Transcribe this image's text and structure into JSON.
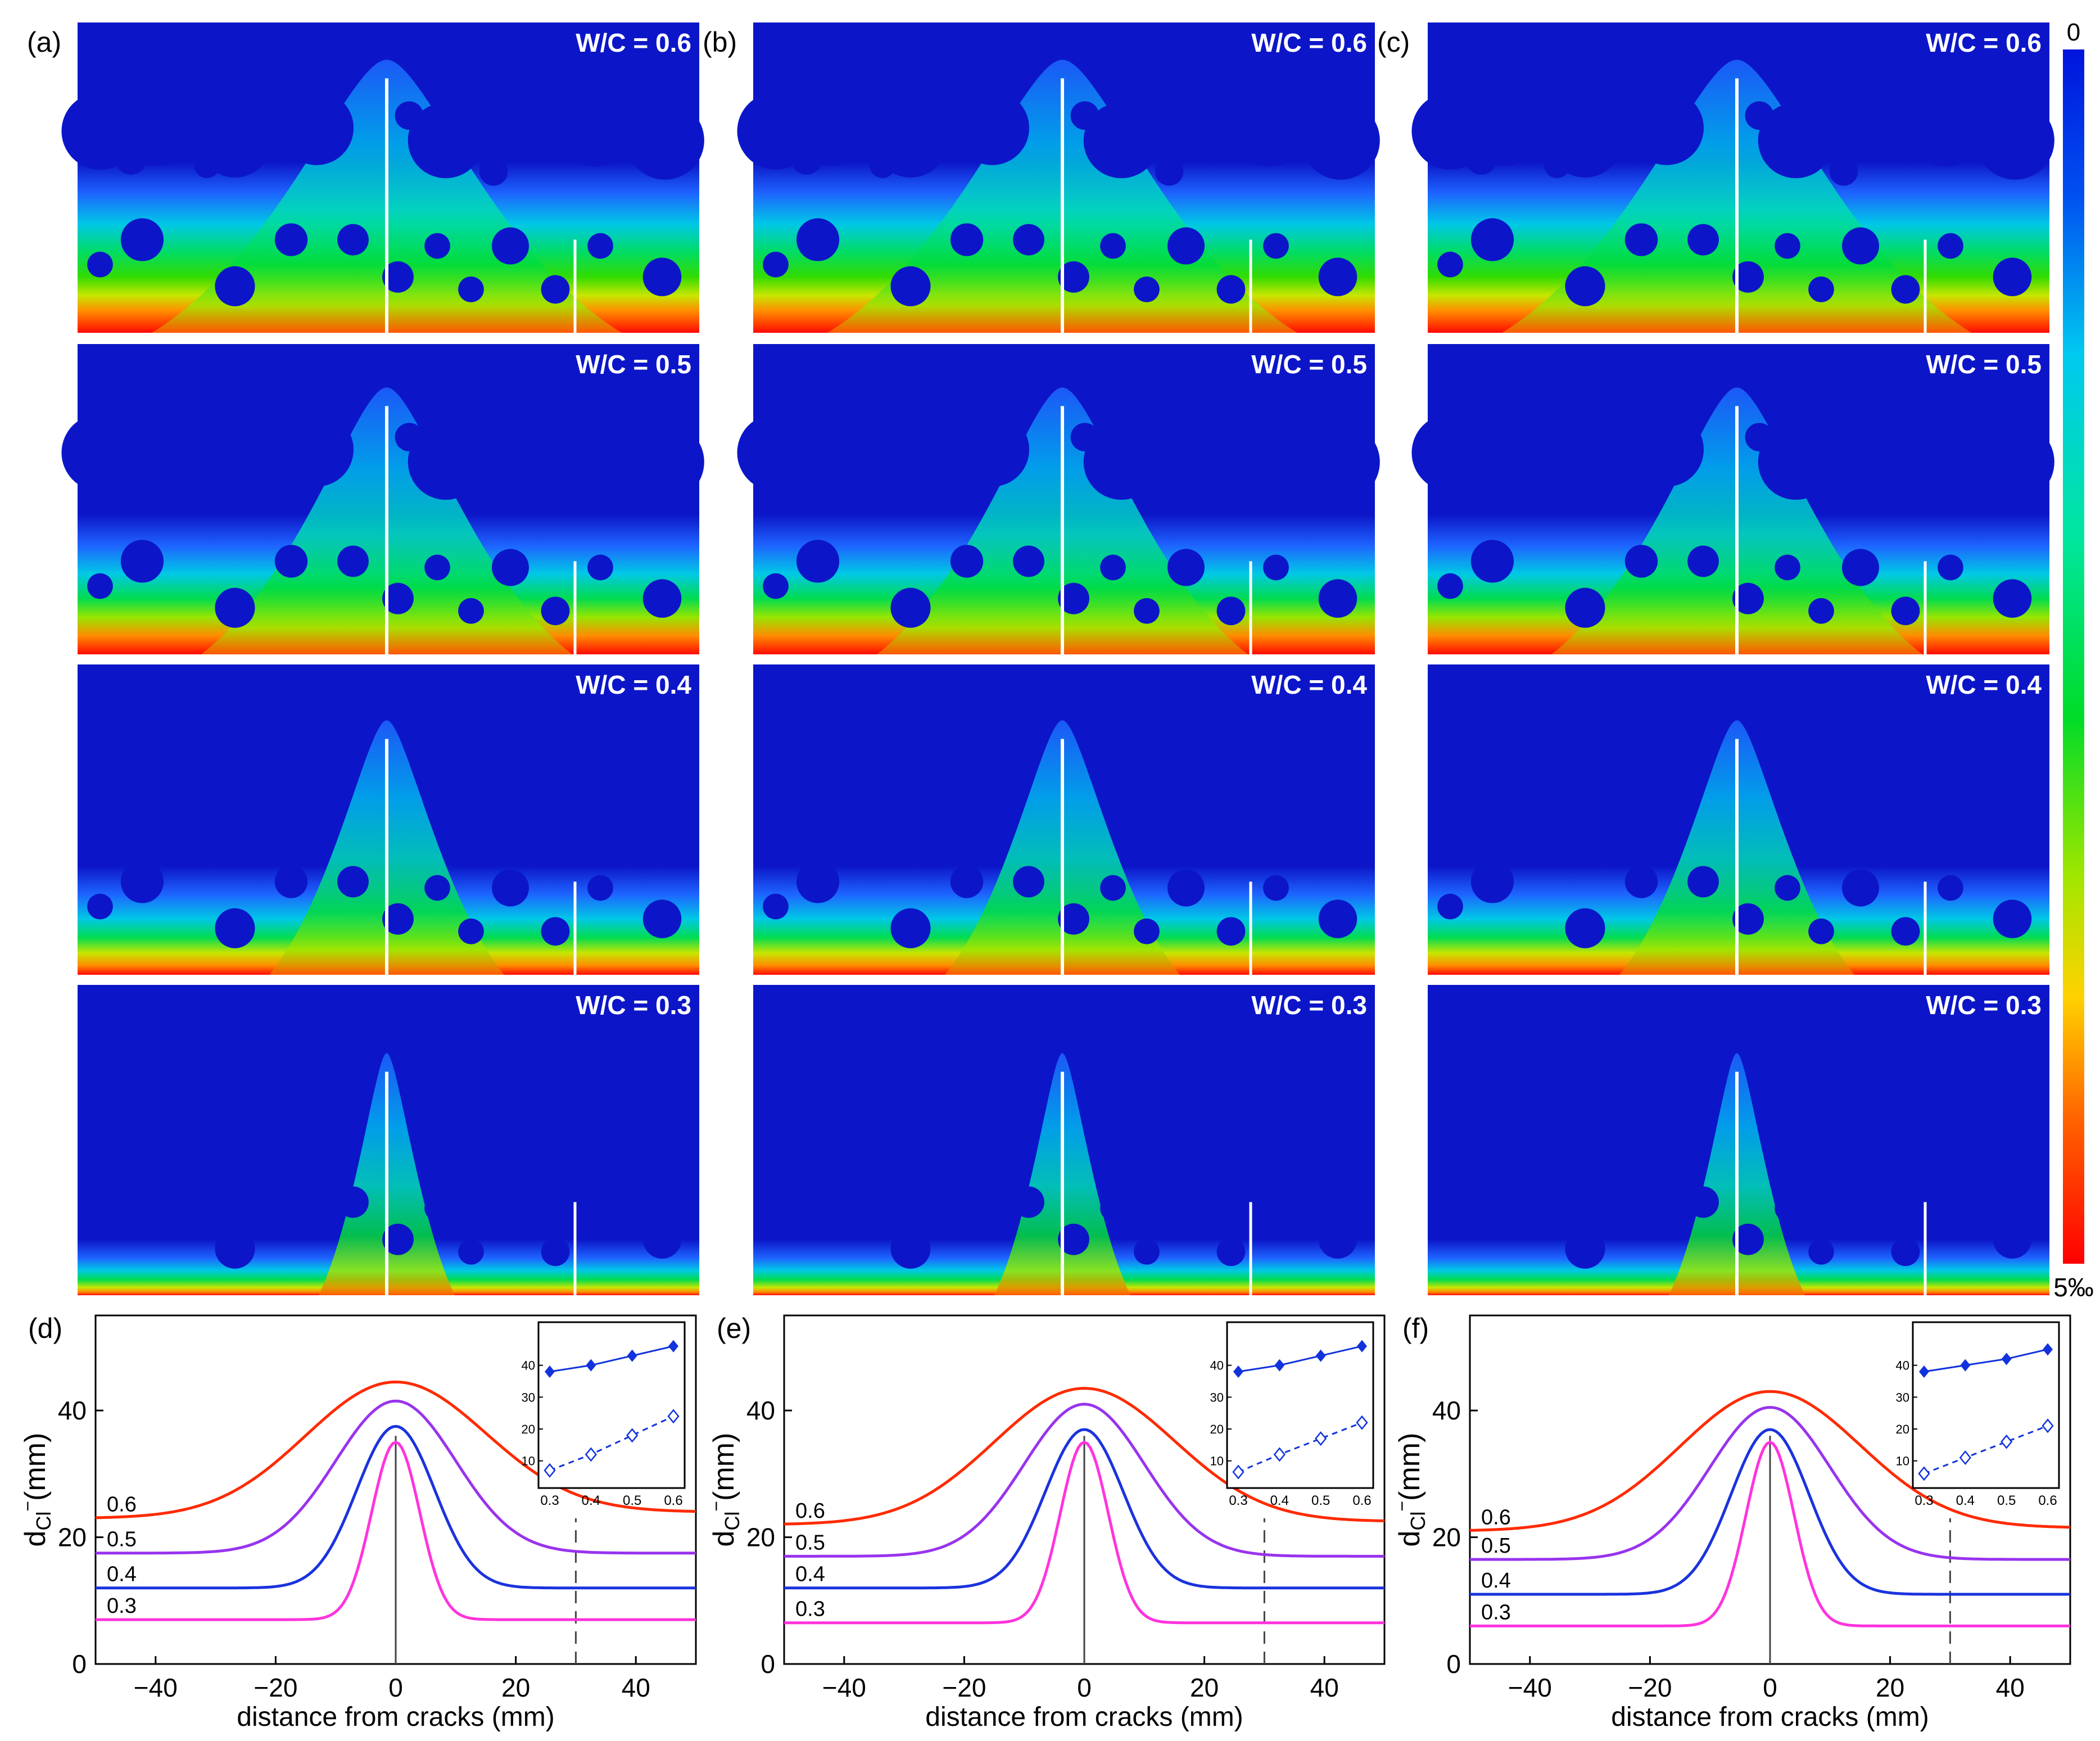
{
  "panel_labels": [
    "(a)",
    "(b)",
    "(c)",
    "(d)",
    "(e)",
    "(f)"
  ],
  "wc_labels": [
    "W/C = 0.6",
    "W/C = 0.5",
    "W/C = 0.4",
    "W/C = 0.3"
  ],
  "colorbar": {
    "top_label": "0",
    "bottom_label": "5‰"
  },
  "colors": {
    "background_blue": "#0c16c8",
    "crack_white": "#ffffff",
    "series_0.6": "#ff2a00",
    "series_0.5": "#9933ee",
    "series_0.4": "#1a33dd",
    "series_0.3": "#ff33dd",
    "inset_marker": "#1133dd"
  },
  "chart_data": [
    {
      "panel": "(d)",
      "type": "line",
      "xlabel": "distance from cracks  (mm)",
      "ylabel": "dCl⁻(mm)",
      "ylabel_main": "d",
      "ylabel_sub": "Cl",
      "ylabel_sup": "−",
      "ylabel_unit": "(mm)",
      "xlim": [
        -50,
        50
      ],
      "ylim": [
        0,
        55
      ],
      "xticks": [
        -40,
        -20,
        0,
        20,
        40
      ],
      "yticks": [
        0,
        20,
        40
      ],
      "vlines": [
        0,
        30
      ],
      "series": [
        {
          "name": "0.6",
          "baseline_left": 23,
          "baseline_right": 24,
          "peak": 44.5,
          "width": 15
        },
        {
          "name": "0.5",
          "baseline_left": 17.5,
          "baseline_right": 17.5,
          "peak": 41.5,
          "width": 10
        },
        {
          "name": "0.4",
          "baseline_left": 12,
          "baseline_right": 12,
          "peak": 37.5,
          "width": 6.5
        },
        {
          "name": "0.3",
          "baseline_left": 7,
          "baseline_right": 7,
          "peak": 35,
          "width": 4
        }
      ],
      "inset": {
        "x": [
          0.3,
          0.4,
          0.5,
          0.6
        ],
        "xticks": [
          "0.3",
          "0.4",
          "0.5",
          "0.6"
        ],
        "yticks": [
          "10",
          "20",
          "30",
          "40"
        ],
        "peak_series": [
          38,
          40,
          43,
          46
        ],
        "baseline_series": [
          7,
          12,
          18,
          24
        ]
      }
    },
    {
      "panel": "(e)",
      "type": "line",
      "xlabel": "distance from cracks  (mm)",
      "ylabel": "dCl⁻(mm)",
      "ylabel_main": "d",
      "ylabel_sub": "Cl",
      "ylabel_sup": "−",
      "ylabel_unit": "(mm)",
      "xlim": [
        -50,
        50
      ],
      "ylim": [
        0,
        55
      ],
      "xticks": [
        -40,
        -20,
        0,
        20,
        40
      ],
      "yticks": [
        0,
        20,
        40
      ],
      "vlines": [
        0,
        30
      ],
      "series": [
        {
          "name": "0.6",
          "baseline_left": 22,
          "baseline_right": 22.5,
          "peak": 43.5,
          "width": 15
        },
        {
          "name": "0.5",
          "baseline_left": 17,
          "baseline_right": 17,
          "peak": 41,
          "width": 10
        },
        {
          "name": "0.4",
          "baseline_left": 12,
          "baseline_right": 12,
          "peak": 37,
          "width": 6.5
        },
        {
          "name": "0.3",
          "baseline_left": 6.5,
          "baseline_right": 6.5,
          "peak": 35,
          "width": 4
        }
      ],
      "inset": {
        "x": [
          0.3,
          0.4,
          0.5,
          0.6
        ],
        "xticks": [
          "0.3",
          "0.4",
          "0.5",
          "0.6"
        ],
        "yticks": [
          "10",
          "20",
          "30",
          "40"
        ],
        "peak_series": [
          38,
          40,
          43,
          46
        ],
        "baseline_series": [
          6.5,
          12,
          17,
          22
        ]
      }
    },
    {
      "panel": "(f)",
      "type": "line",
      "xlabel": "distance from cracks  (mm)",
      "ylabel": "dCl⁻(mm)",
      "ylabel_main": "d",
      "ylabel_sub": "Cl",
      "ylabel_sup": "−",
      "ylabel_unit": "(mm)",
      "xlim": [
        -50,
        50
      ],
      "ylim": [
        0,
        55
      ],
      "xticks": [
        -40,
        -20,
        0,
        20,
        40
      ],
      "yticks": [
        0,
        20,
        40
      ],
      "vlines": [
        0,
        30
      ],
      "series": [
        {
          "name": "0.6",
          "baseline_left": 21,
          "baseline_right": 21.5,
          "peak": 43,
          "width": 15
        },
        {
          "name": "0.5",
          "baseline_left": 16.5,
          "baseline_right": 16.5,
          "peak": 40.5,
          "width": 10
        },
        {
          "name": "0.4",
          "baseline_left": 11,
          "baseline_right": 11,
          "peak": 37,
          "width": 6.5
        },
        {
          "name": "0.3",
          "baseline_left": 6,
          "baseline_right": 6,
          "peak": 35,
          "width": 4
        }
      ],
      "inset": {
        "x": [
          0.3,
          0.4,
          0.5,
          0.6
        ],
        "xticks": [
          "0.3",
          "0.4",
          "0.5",
          "0.6"
        ],
        "yticks": [
          "10",
          "20",
          "30",
          "40"
        ],
        "peak_series": [
          38,
          40,
          42,
          45
        ],
        "baseline_series": [
          6,
          11,
          16,
          21
        ]
      }
    }
  ]
}
